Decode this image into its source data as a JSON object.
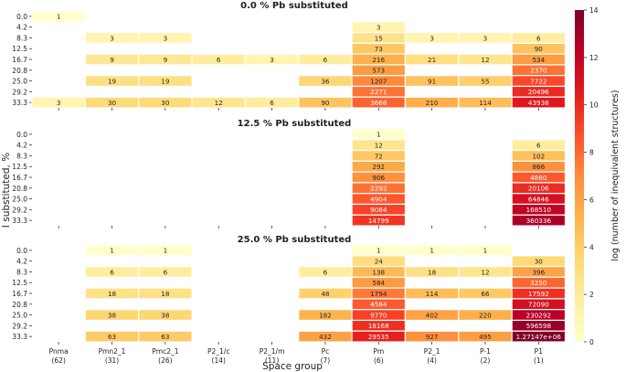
{
  "chart_data": {
    "type": "heatmap",
    "xlabel": "Space group",
    "ylabel": "I substituted, %",
    "colorbar_label": "log (number of inequivalent structures)",
    "colorbar_range": [
      0,
      14
    ],
    "colorbar_ticks": [
      "0",
      "2",
      "4",
      "6",
      "8",
      "10",
      "12",
      "14"
    ],
    "colormap": [
      "#ffffcc",
      "#ffeda0",
      "#fed976",
      "#feb24c",
      "#fd8d3c",
      "#fc4e2a",
      "#e31a1c",
      "#bd0026",
      "#800026"
    ],
    "x_names": [
      "Pnma",
      "Pmn2_1",
      "Pmc2_1",
      "P2_1/c",
      "P2_1/m",
      "Pc",
      "Pm",
      "P2_1",
      "P-1",
      "P1"
    ],
    "x_counts": [
      "(62)",
      "(31)",
      "(26)",
      "(14)",
      "(11)",
      "(7)",
      "(6)",
      "(4)",
      "(2)",
      "(1)"
    ],
    "y_categories": [
      "0.0",
      "4.2",
      "8.3",
      "12.5",
      "16.7",
      "20.8",
      "25.0",
      "29.2",
      "33.3"
    ],
    "panels": [
      {
        "title": "0.0 % Pb substituted",
        "values": [
          [
            1,
            null,
            null,
            null,
            null,
            null,
            null,
            null,
            null,
            null
          ],
          [
            null,
            null,
            null,
            null,
            null,
            null,
            3,
            null,
            null,
            null
          ],
          [
            null,
            3,
            3,
            null,
            null,
            null,
            15,
            3,
            3,
            6
          ],
          [
            null,
            null,
            null,
            null,
            null,
            null,
            73,
            null,
            null,
            90
          ],
          [
            null,
            9,
            9,
            6,
            3,
            6,
            216,
            21,
            12,
            534
          ],
          [
            null,
            null,
            null,
            null,
            null,
            null,
            573,
            null,
            null,
            2370
          ],
          [
            null,
            19,
            19,
            null,
            null,
            36,
            1207,
            91,
            55,
            7722
          ],
          [
            null,
            null,
            null,
            null,
            null,
            null,
            2271,
            null,
            null,
            20496
          ],
          [
            3,
            30,
            30,
            12,
            6,
            90,
            3666,
            210,
            114,
            43938
          ]
        ],
        "labels": [
          [
            "1",
            "",
            "",
            "",
            "",
            "",
            "",
            "",
            "",
            ""
          ],
          [
            "",
            "",
            "",
            "",
            "",
            "",
            "3",
            "",
            "",
            ""
          ],
          [
            "",
            "3",
            "3",
            "",
            "",
            "",
            "15",
            "3",
            "3",
            "6"
          ],
          [
            "",
            "",
            "",
            "",
            "",
            "",
            "73",
            "",
            "",
            "90"
          ],
          [
            "",
            "9",
            "9",
            "6",
            "3",
            "6",
            "216",
            "21",
            "12",
            "534"
          ],
          [
            "",
            "",
            "",
            "",
            "",
            "",
            "573",
            "",
            "",
            "2370"
          ],
          [
            "",
            "19",
            "19",
            "",
            "",
            "36",
            "1207",
            "91",
            "55",
            "7722"
          ],
          [
            "",
            "",
            "",
            "",
            "",
            "",
            "2271",
            "",
            "",
            "20496"
          ],
          [
            "3",
            "30",
            "30",
            "12",
            "6",
            "90",
            "3666",
            "210",
            "114",
            "43938"
          ]
        ]
      },
      {
        "title": "12.5 % Pb substituted",
        "values": [
          [
            null,
            null,
            null,
            null,
            null,
            null,
            1,
            null,
            null,
            null
          ],
          [
            null,
            null,
            null,
            null,
            null,
            null,
            12,
            null,
            null,
            6
          ],
          [
            null,
            null,
            null,
            null,
            null,
            null,
            72,
            null,
            null,
            102
          ],
          [
            null,
            null,
            null,
            null,
            null,
            null,
            292,
            null,
            null,
            866
          ],
          [
            null,
            null,
            null,
            null,
            null,
            null,
            906,
            null,
            null,
            4860
          ],
          [
            null,
            null,
            null,
            null,
            null,
            null,
            2292,
            null,
            null,
            20106
          ],
          [
            null,
            null,
            null,
            null,
            null,
            null,
            4904,
            null,
            null,
            64846
          ],
          [
            null,
            null,
            null,
            null,
            null,
            null,
            9084,
            null,
            null,
            168510
          ],
          [
            null,
            null,
            null,
            null,
            null,
            null,
            14799,
            null,
            null,
            360336
          ]
        ],
        "labels": [
          [
            "",
            "",
            "",
            "",
            "",
            "",
            "1",
            "",
            "",
            ""
          ],
          [
            "",
            "",
            "",
            "",
            "",
            "",
            "12",
            "",
            "",
            "6"
          ],
          [
            "",
            "",
            "",
            "",
            "",
            "",
            "72",
            "",
            "",
            "102"
          ],
          [
            "",
            "",
            "",
            "",
            "",
            "",
            "292",
            "",
            "",
            "866"
          ],
          [
            "",
            "",
            "",
            "",
            "",
            "",
            "906",
            "",
            "",
            "4860"
          ],
          [
            "",
            "",
            "",
            "",
            "",
            "",
            "2292",
            "",
            "",
            "20106"
          ],
          [
            "",
            "",
            "",
            "",
            "",
            "",
            "4904",
            "",
            "",
            "64846"
          ],
          [
            "",
            "",
            "",
            "",
            "",
            "",
            "9084",
            "",
            "",
            "168510"
          ],
          [
            "",
            "",
            "",
            "",
            "",
            "",
            "14799",
            "",
            "",
            "360336"
          ]
        ]
      },
      {
        "title": "25.0 % Pb substituted",
        "values": [
          [
            null,
            1,
            1,
            null,
            null,
            null,
            1,
            1,
            1,
            null
          ],
          [
            null,
            null,
            null,
            null,
            null,
            null,
            24,
            null,
            null,
            30
          ],
          [
            null,
            6,
            6,
            null,
            null,
            6,
            138,
            18,
            12,
            396
          ],
          [
            null,
            null,
            null,
            null,
            null,
            null,
            584,
            null,
            null,
            3250
          ],
          [
            null,
            18,
            18,
            null,
            null,
            48,
            1794,
            114,
            66,
            17592
          ],
          [
            null,
            null,
            null,
            null,
            null,
            null,
            4584,
            null,
            null,
            72090
          ],
          [
            null,
            38,
            38,
            null,
            null,
            182,
            9770,
            402,
            220,
            230292
          ],
          [
            null,
            null,
            null,
            null,
            null,
            null,
            18168,
            null,
            null,
            596598
          ],
          [
            null,
            63,
            63,
            null,
            null,
            432,
            29535,
            927,
            495,
            1271470
          ]
        ],
        "labels": [
          [
            "",
            "1",
            "1",
            "",
            "",
            "",
            "1",
            "1",
            "1",
            ""
          ],
          [
            "",
            "",
            "",
            "",
            "",
            "",
            "24",
            "",
            "",
            "30"
          ],
          [
            "",
            "6",
            "6",
            "",
            "",
            "6",
            "138",
            "18",
            "12",
            "396"
          ],
          [
            "",
            "",
            "",
            "",
            "",
            "",
            "584",
            "",
            "",
            "3250"
          ],
          [
            "",
            "18",
            "18",
            "",
            "",
            "48",
            "1794",
            "114",
            "66",
            "17592"
          ],
          [
            "",
            "",
            "",
            "",
            "",
            "",
            "4584",
            "",
            "",
            "72090"
          ],
          [
            "",
            "38",
            "38",
            "",
            "",
            "182",
            "9770",
            "402",
            "220",
            "230292"
          ],
          [
            "",
            "",
            "",
            "",
            "",
            "",
            "18168",
            "",
            "",
            "596598"
          ],
          [
            "",
            "63",
            "63",
            "",
            "",
            "432",
            "29535",
            "927",
            "495",
            "1.27147e+06"
          ]
        ]
      }
    ]
  }
}
